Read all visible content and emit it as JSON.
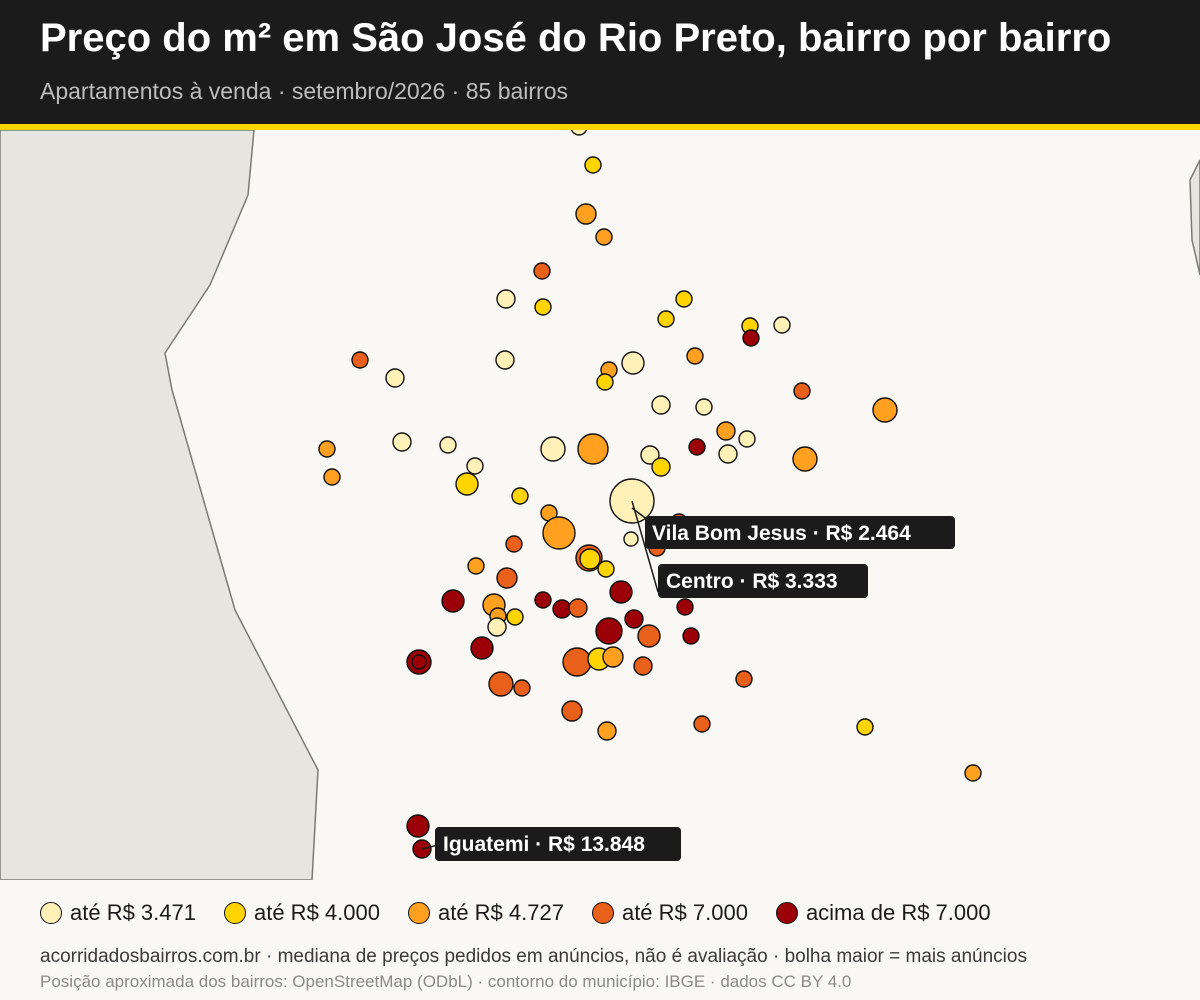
{
  "header": {
    "title": "Preço do m² em São José do Rio Preto, bairro por bairro",
    "subtitle": "Apartamentos à venda · setembro/2026 · 85 bairros"
  },
  "colors": {
    "header_bg": "#1b1b1b",
    "accent": "#ffd400",
    "land": "#faf8f4",
    "outside": "#e6e5df",
    "boundary": "#7a7a72"
  },
  "legend": [
    {
      "label": "até R$ 3.471",
      "color": "#fff1b8"
    },
    {
      "label": "até R$ 4.000",
      "color": "#ffd400"
    },
    {
      "label": "até R$ 4.727",
      "color": "#ffa020"
    },
    {
      "label": "até R$ 7.000",
      "color": "#e8601a"
    },
    {
      "label": "acima de R$ 7.000",
      "color": "#9b0008"
    }
  ],
  "callouts": [
    {
      "name": "Vila Bom Jesus",
      "text": "Vila Bom Jesus · R$ 2.464"
    },
    {
      "name": "Centro",
      "text": "Centro · R$ 3.333"
    },
    {
      "name": "Iguatemi",
      "text": "Iguatemi · R$ 13.848"
    }
  ],
  "footer": {
    "source": "acorridadosbairros.com.br · mediana de preços pedidos em anúncios, não é avaliação · bolha maior = mais anúncios",
    "note": "Posição aproximada dos bairros: OpenStreetMap (ODbL) · contorno do município: IBGE · dados CC BY 4.0"
  }
}
